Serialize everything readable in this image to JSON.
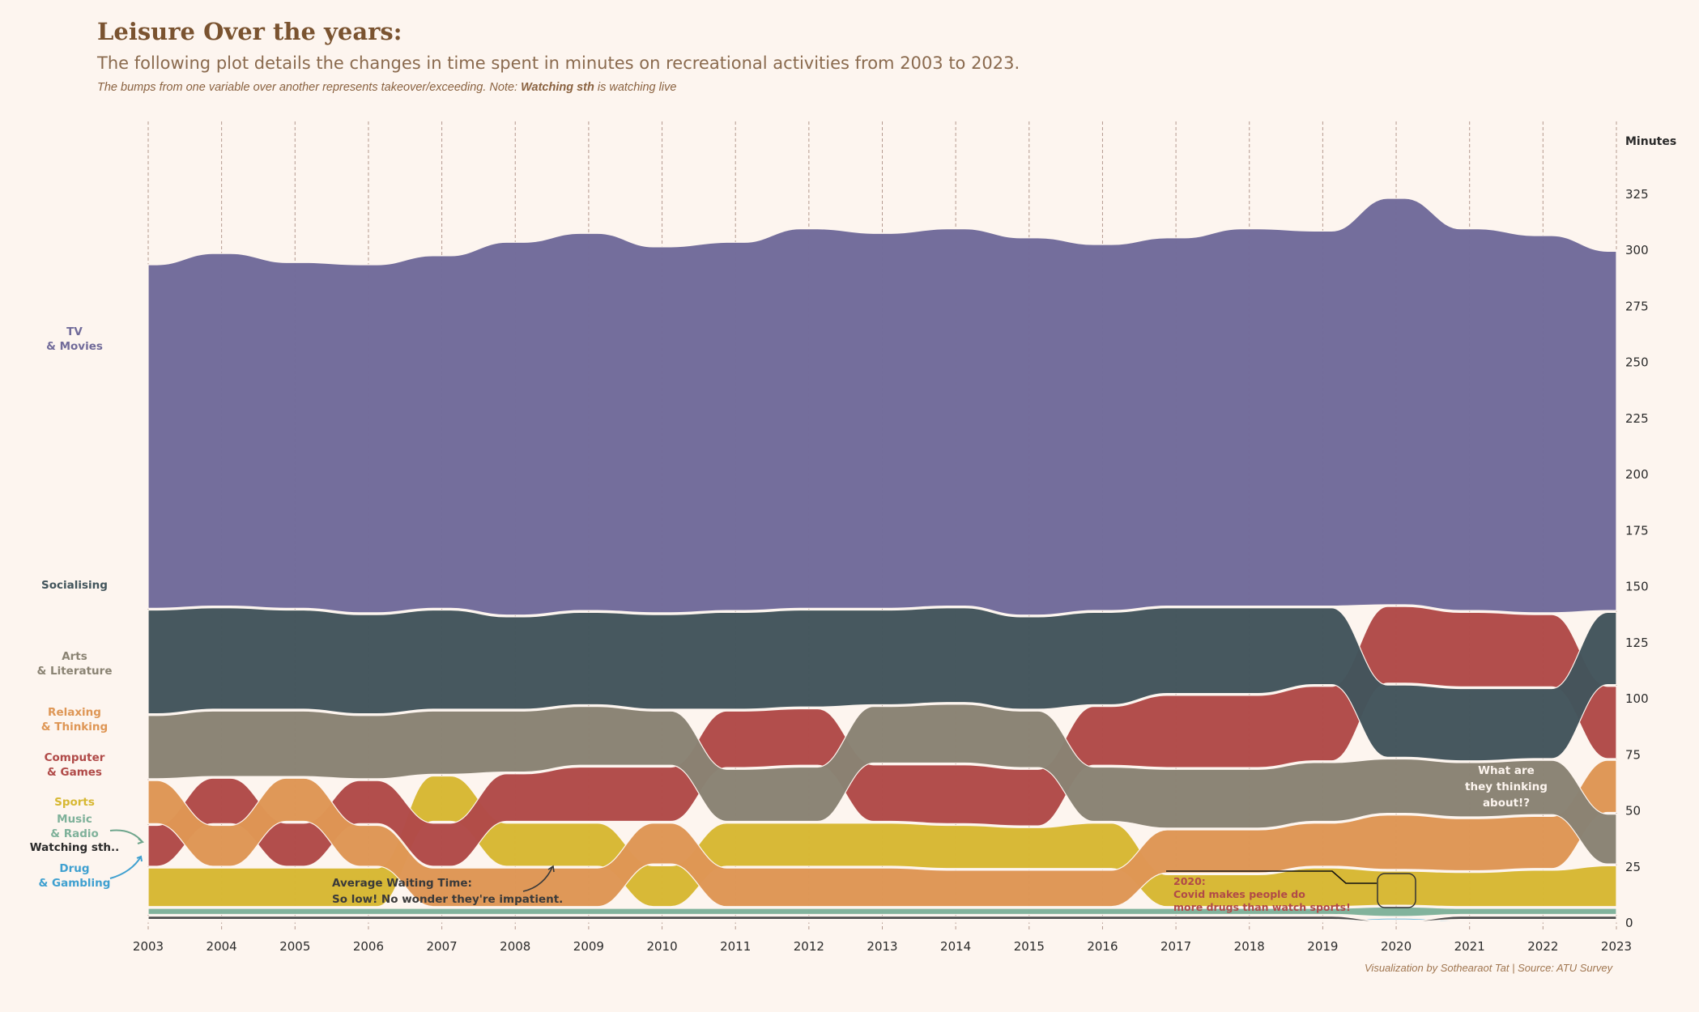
{
  "header": {
    "title": "Leisure Over the years:",
    "subtitle": "The following plot details the changes in time spent in minutes on recreational activities from 2003 to 2023.",
    "note_prefix": "The bumps from one variable over another represents takeover/exceeding. Note: ",
    "note_bold": "Watching sth",
    "note_suffix": " is watching live"
  },
  "footer": {
    "credit": "Visualization by Sothearaot Tat | Source: ATU Survey"
  },
  "annotations": {
    "waiting": [
      "Average Waiting Time:",
      "So low! No wonder they're impatient."
    ],
    "covid": [
      "2020:",
      "Covid makes people do",
      "more drugs than watch sports!"
    ],
    "thinking": [
      "What are",
      "they thinking",
      "about!?"
    ]
  },
  "chart_data": {
    "type": "area",
    "subtype": "stacked-bump",
    "years": [
      2003,
      2004,
      2005,
      2006,
      2007,
      2008,
      2009,
      2010,
      2011,
      2012,
      2013,
      2014,
      2015,
      2016,
      2017,
      2018,
      2019,
      2020,
      2021,
      2022,
      2023
    ],
    "ylabel": "Minutes",
    "ylim": [
      0,
      340
    ],
    "yticks": [
      0,
      25,
      50,
      75,
      100,
      125,
      150,
      175,
      200,
      225,
      250,
      275,
      300,
      325
    ],
    "grid": "vertical dashed at each year",
    "series": [
      {
        "key": "drug",
        "label": [
          "Drug",
          "& Gambling"
        ],
        "color": "#3fa0d0",
        "values": [
          1.2,
          1.2,
          1.2,
          1.2,
          1.2,
          1.2,
          1.2,
          1.2,
          1.2,
          1.2,
          1.2,
          1.2,
          1.2,
          1.2,
          1.2,
          1.2,
          1.2,
          1.5,
          1.2,
          1.2,
          1.2
        ]
      },
      {
        "key": "watching",
        "label": [
          "Watching sth.."
        ],
        "color": "#4a4a4a",
        "values": [
          2.2,
          2.2,
          2.2,
          2.2,
          2.2,
          2.2,
          2.2,
          2.2,
          2.2,
          2.2,
          2.2,
          2.2,
          2.2,
          2.2,
          2.2,
          2.2,
          2.2,
          1.0,
          2.2,
          2.2,
          2.2
        ]
      },
      {
        "key": "music",
        "label": [
          "Music",
          "& Radio"
        ],
        "color": "#7fb19a",
        "values": [
          3.5,
          3.5,
          3.5,
          3.5,
          3.5,
          3.5,
          3.5,
          3.5,
          3.5,
          3.5,
          3.5,
          3.5,
          3.5,
          3.5,
          3.5,
          3.5,
          3.5,
          5.0,
          3.5,
          3.5,
          3.5
        ]
      },
      {
        "key": "sports",
        "label": [
          "Sports"
        ],
        "color": "#d7b833",
        "values": [
          18,
          18,
          18,
          18,
          21,
          20,
          20,
          19,
          20,
          20,
          20,
          20,
          19,
          21,
          15,
          15,
          18,
          16,
          16,
          17,
          19
        ]
      },
      {
        "key": "computer",
        "label": [
          "Computer",
          "& Games"
        ],
        "color": "#b04a48",
        "values": [
          19,
          21,
          20,
          20,
          20,
          22,
          25,
          25,
          26,
          26,
          26,
          27,
          26,
          27,
          33,
          33,
          34,
          35,
          34,
          33,
          33
        ]
      },
      {
        "key": "relaxing",
        "label": [
          "Relaxing",
          "& Thinking"
        ],
        "color": "#de9655",
        "values": [
          20,
          19,
          20,
          19,
          18,
          18,
          18,
          19,
          18,
          18,
          18,
          17,
          17,
          17,
          20,
          20,
          20,
          25,
          24,
          24,
          24
        ]
      },
      {
        "key": "arts",
        "label": [
          "Arts",
          "& Literature"
        ],
        "color": "#8a8373",
        "values": [
          29,
          30,
          30,
          29,
          29,
          28,
          27,
          25,
          24,
          25,
          26,
          27,
          26,
          25,
          27,
          27,
          27,
          25,
          25,
          25,
          23
        ]
      },
      {
        "key": "social",
        "label": [
          "Socialising"
        ],
        "color": "#43555c",
        "values": [
          47,
          46,
          45,
          45,
          45,
          42,
          42,
          43,
          44,
          44,
          43,
          43,
          42,
          42,
          39,
          39,
          35,
          33,
          33,
          32,
          33
        ]
      },
      {
        "key": "tv",
        "label": [
          "TV",
          "& Movies"
        ],
        "color": "#716b9a",
        "values": [
          154,
          158,
          155,
          156,
          158,
          167,
          169,
          164,
          165,
          170,
          168,
          169,
          169,
          164,
          165,
          169,
          168,
          182,
          171,
          169,
          161
        ]
      }
    ]
  }
}
